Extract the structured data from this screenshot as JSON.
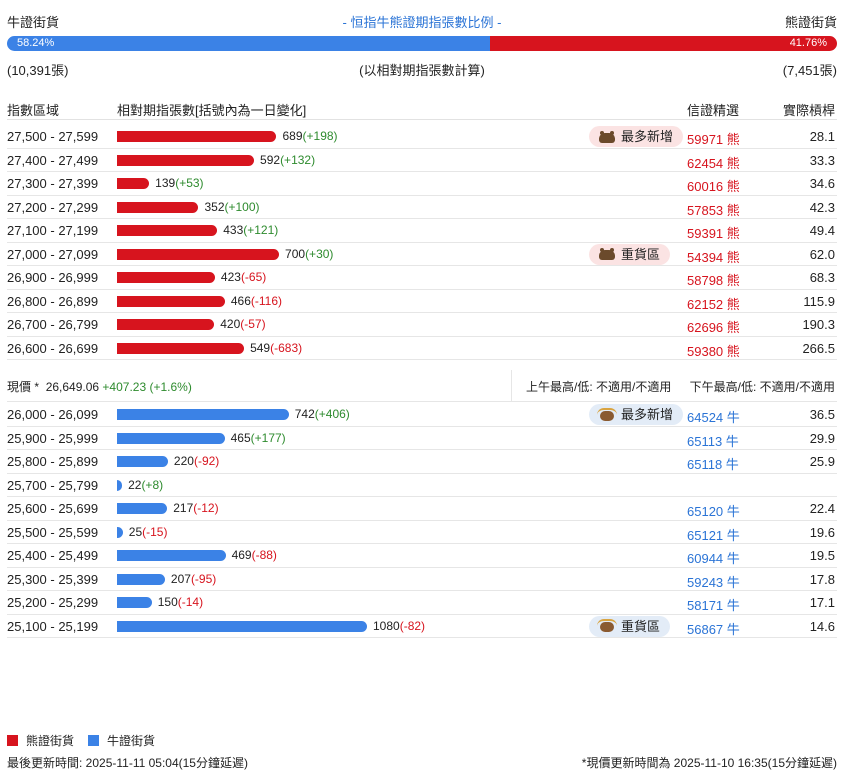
{
  "header": {
    "left_label": "牛證街貨",
    "center_label": "- 恒指牛熊證期指張數比例 -",
    "right_label": "熊證街貨",
    "bull_pct_value": 58.24,
    "bull_pct": "58.24%",
    "bear_pct": "41.76%",
    "bull_count": "(10,391張)",
    "note": "(以相對期指張數計算)",
    "bear_count": "(7,451張)"
  },
  "columns": {
    "range": "指數區域",
    "qty": "相對期指張數[括號內為一日變化]",
    "code": "信證精選",
    "leverage": "實際槓桿"
  },
  "bear_rows": [
    {
      "range": "27,500 - 27,599",
      "qty": 689,
      "qty_label": "689",
      "chg": "(+198)",
      "dir": "pos",
      "tag": "最多新增",
      "code": "59971 熊",
      "lev": "28.1"
    },
    {
      "range": "27,400 - 27,499",
      "qty": 592,
      "qty_label": "592",
      "chg": "(+132)",
      "dir": "pos",
      "tag": "",
      "code": "62454 熊",
      "lev": "33.3"
    },
    {
      "range": "27,300 - 27,399",
      "qty": 139,
      "qty_label": "139",
      "chg": "(+53)",
      "dir": "pos",
      "tag": "",
      "code": "60016 熊",
      "lev": "34.6"
    },
    {
      "range": "27,200 - 27,299",
      "qty": 352,
      "qty_label": "352",
      "chg": "(+100)",
      "dir": "pos",
      "tag": "",
      "code": "57853 熊",
      "lev": "42.3"
    },
    {
      "range": "27,100 - 27,199",
      "qty": 433,
      "qty_label": "433",
      "chg": "(+121)",
      "dir": "pos",
      "tag": "",
      "code": "59391 熊",
      "lev": "49.4"
    },
    {
      "range": "27,000 - 27,099",
      "qty": 700,
      "qty_label": "700",
      "chg": "(+30)",
      "dir": "pos",
      "tag": "重貨區",
      "code": "54394 熊",
      "lev": "62.0"
    },
    {
      "range": "26,900 - 26,999",
      "qty": 423,
      "qty_label": "423",
      "chg": "(-65)",
      "dir": "neg",
      "tag": "",
      "code": "58798 熊",
      "lev": "68.3"
    },
    {
      "range": "26,800 - 26,899",
      "qty": 466,
      "qty_label": "466",
      "chg": "(-116)",
      "dir": "neg",
      "tag": "",
      "code": "62152 熊",
      "lev": "115.9"
    },
    {
      "range": "26,700 - 26,799",
      "qty": 420,
      "qty_label": "420",
      "chg": "(-57)",
      "dir": "neg",
      "tag": "",
      "code": "62696 熊",
      "lev": "190.3"
    },
    {
      "range": "26,600 - 26,699",
      "qty": 549,
      "qty_label": "549",
      "chg": "(-683)",
      "dir": "neg",
      "tag": "",
      "code": "59380 熊",
      "lev": "266.5"
    }
  ],
  "spot": {
    "label": "現價 *",
    "price": "26,649.06",
    "change": "+407.23 (+1.6%)",
    "am": "上午最高/低: 不適用/不適用",
    "pm": "下午最高/低: 不適用/不適用"
  },
  "bull_rows": [
    {
      "range": "26,000 - 26,099",
      "qty": 742,
      "qty_label": "742",
      "chg": "(+406)",
      "dir": "pos",
      "tag": "最多新增",
      "code": "64524 牛",
      "lev": "36.5"
    },
    {
      "range": "25,900 - 25,999",
      "qty": 465,
      "qty_label": "465",
      "chg": "(+177)",
      "dir": "pos",
      "tag": "",
      "code": "65113 牛",
      "lev": "29.9"
    },
    {
      "range": "25,800 - 25,899",
      "qty": 220,
      "qty_label": "220",
      "chg": "(-92)",
      "dir": "neg",
      "tag": "",
      "code": "65118 牛",
      "lev": "25.9"
    },
    {
      "range": "25,700 - 25,799",
      "qty": 22,
      "qty_label": "22",
      "chg": "(+8)",
      "dir": "pos",
      "tag": "",
      "code": "",
      "lev": ""
    },
    {
      "range": "25,600 - 25,699",
      "qty": 217,
      "qty_label": "217",
      "chg": "(-12)",
      "dir": "neg",
      "tag": "",
      "code": "65120 牛",
      "lev": "22.4"
    },
    {
      "range": "25,500 - 25,599",
      "qty": 25,
      "qty_label": "25",
      "chg": "(-15)",
      "dir": "neg",
      "tag": "",
      "code": "65121 牛",
      "lev": "19.6"
    },
    {
      "range": "25,400 - 25,499",
      "qty": 469,
      "qty_label": "469",
      "chg": "(-88)",
      "dir": "neg",
      "tag": "",
      "code": "60944 牛",
      "lev": "19.5"
    },
    {
      "range": "25,300 - 25,399",
      "qty": 207,
      "qty_label": "207",
      "chg": "(-95)",
      "dir": "neg",
      "tag": "",
      "code": "59243 牛",
      "lev": "17.8"
    },
    {
      "range": "25,200 - 25,299",
      "qty": 150,
      "qty_label": "150",
      "chg": "(-14)",
      "dir": "neg",
      "tag": "",
      "code": "58171 牛",
      "lev": "17.1"
    },
    {
      "range": "25,100 - 25,199",
      "qty": 1080,
      "qty_label": "1080",
      "chg": "(-82)",
      "dir": "neg",
      "tag": "重貨區",
      "code": "56867 牛",
      "lev": "14.6"
    }
  ],
  "legend": {
    "bear": "熊證街貨",
    "bull": "牛證街貨"
  },
  "footer": {
    "left": "最後更新時間: 2025-11-11 05:04(15分鐘延遲)",
    "right": "*現價更新時間為 2025-11-10 16:35(15分鐘延遲)"
  },
  "colors": {
    "bear": "#d7141e",
    "bull": "#3b82e6",
    "up": "#2e8b2e",
    "down": "#d7141e"
  }
}
